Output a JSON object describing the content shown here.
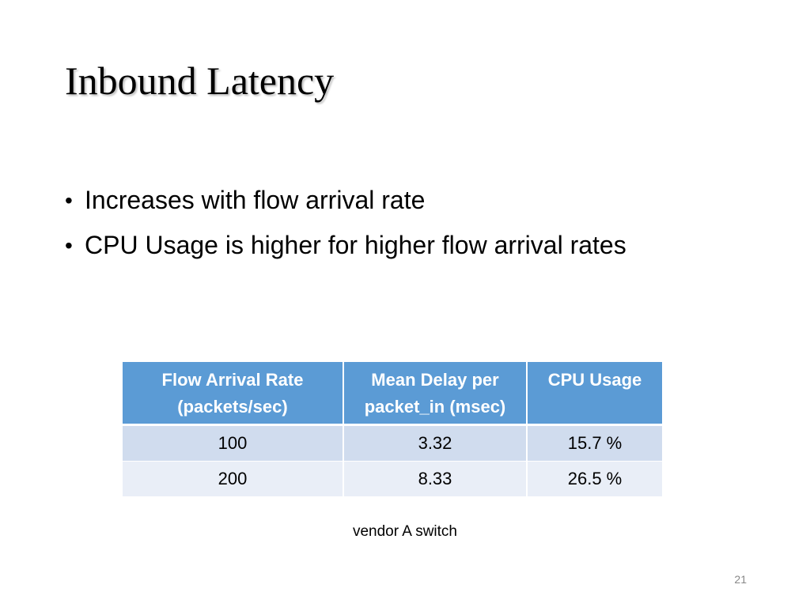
{
  "slide": {
    "title": "Inbound Latency",
    "bullets": [
      "Increases with flow arrival rate",
      "CPU Usage is higher for higher flow arrival rates"
    ],
    "bullet_symbol": "•",
    "table": {
      "headers": [
        [
          "Flow Arrival Rate",
          "(packets/sec)"
        ],
        [
          "Mean Delay per",
          "packet_in (msec)"
        ],
        [
          "CPU Usage"
        ]
      ],
      "rows": [
        [
          "100",
          "3.32",
          "15.7 %"
        ],
        [
          "200",
          "8.33",
          "26.5 %"
        ]
      ]
    },
    "caption": "vendor A switch",
    "page_number": "21"
  },
  "colors": {
    "header_bg": "#5b9bd5",
    "row_odd_bg": "#d0dcee",
    "row_even_bg": "#e9eef7",
    "page_number": "#888888"
  }
}
